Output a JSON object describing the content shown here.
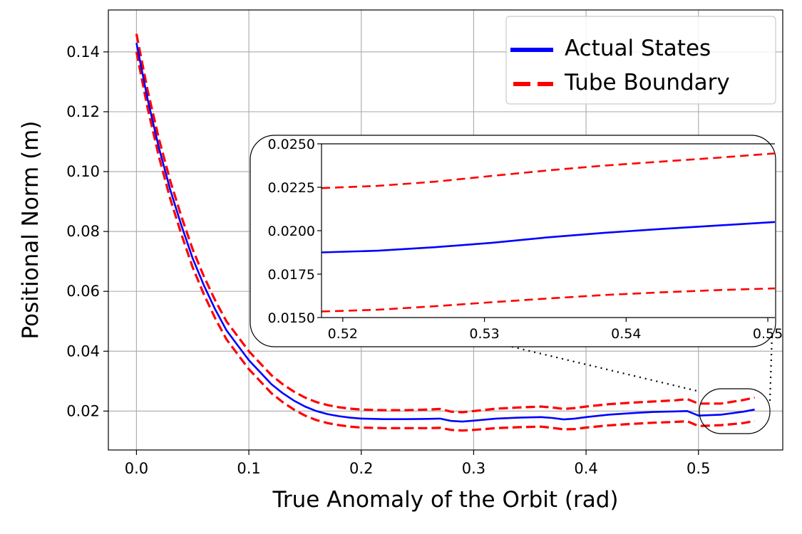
{
  "chart_data": {
    "type": "line",
    "xlabel": "True Anomaly of the Orbit (rad)",
    "ylabel": "Positional Norm (m)",
    "xlim": [
      -0.025,
      0.575
    ],
    "ylim": [
      0.007,
      0.154
    ],
    "grid": true,
    "legend_position": "top-right",
    "x_ticks": [
      0.0,
      0.1,
      0.2,
      0.3,
      0.4,
      0.5
    ],
    "x_tick_labels": [
      "0.0",
      "0.1",
      "0.2",
      "0.3",
      "0.4",
      "0.5"
    ],
    "y_ticks": [
      0.02,
      0.04,
      0.06,
      0.08,
      0.1,
      0.12,
      0.14
    ],
    "y_tick_labels": [
      "0.02",
      "0.04",
      "0.06",
      "0.08",
      "0.10",
      "0.12",
      "0.14"
    ],
    "x": [
      0.0,
      0.01,
      0.02,
      0.03,
      0.04,
      0.05,
      0.06,
      0.07,
      0.08,
      0.09,
      0.1,
      0.11,
      0.12,
      0.13,
      0.14,
      0.15,
      0.16,
      0.17,
      0.18,
      0.19,
      0.2,
      0.22,
      0.24,
      0.26,
      0.27,
      0.28,
      0.29,
      0.3,
      0.32,
      0.34,
      0.36,
      0.37,
      0.38,
      0.39,
      0.4,
      0.42,
      0.44,
      0.46,
      0.48,
      0.49,
      0.5,
      0.52,
      0.54,
      0.55
    ],
    "series": [
      {
        "name": "Actual States",
        "color": "#0000ff",
        "style": "solid",
        "values": [
          0.143,
          0.124,
          0.108,
          0.094,
          0.082,
          0.071,
          0.062,
          0.054,
          0.047,
          0.042,
          0.037,
          0.033,
          0.029,
          0.026,
          0.0235,
          0.0215,
          0.02,
          0.019,
          0.0183,
          0.0178,
          0.0175,
          0.0173,
          0.0173,
          0.0174,
          0.0175,
          0.0167,
          0.0165,
          0.0168,
          0.0175,
          0.0178,
          0.018,
          0.0177,
          0.0172,
          0.0175,
          0.018,
          0.0188,
          0.0193,
          0.0197,
          0.0199,
          0.02,
          0.0185,
          0.0188,
          0.0198,
          0.0205
        ]
      },
      {
        "name": "Tube Boundary",
        "color": "#ff0000",
        "style": "dashed",
        "values": [
          0.146,
          0.127,
          0.111,
          0.097,
          0.085,
          0.074,
          0.065,
          0.057,
          0.05,
          0.045,
          0.04,
          0.036,
          0.032,
          0.029,
          0.0265,
          0.0245,
          0.023,
          0.022,
          0.0213,
          0.0208,
          0.0205,
          0.0203,
          0.0203,
          0.0205,
          0.0207,
          0.0198,
          0.0196,
          0.02,
          0.0208,
          0.0212,
          0.0215,
          0.0212,
          0.0207,
          0.021,
          0.0215,
          0.0223,
          0.0228,
          0.0232,
          0.0236,
          0.024,
          0.0225,
          0.0225,
          0.0237,
          0.0245
        ]
      },
      {
        "name": "",
        "legend": false,
        "color": "#ff0000",
        "style": "dashed",
        "values": [
          0.14,
          0.121,
          0.105,
          0.091,
          0.079,
          0.068,
          0.059,
          0.051,
          0.044,
          0.039,
          0.034,
          0.03,
          0.026,
          0.023,
          0.0205,
          0.0185,
          0.017,
          0.016,
          0.0153,
          0.0148,
          0.0145,
          0.0143,
          0.0143,
          0.0143,
          0.0144,
          0.0137,
          0.0135,
          0.0137,
          0.0143,
          0.0146,
          0.0148,
          0.0144,
          0.0139,
          0.014,
          0.0145,
          0.0152,
          0.0157,
          0.0161,
          0.0164,
          0.0166,
          0.015,
          0.0153,
          0.016,
          0.0167
        ]
      }
    ],
    "legend": [
      {
        "label": "Actual States",
        "color": "#0000ff",
        "style": "solid"
      },
      {
        "label": "Tube Boundary",
        "color": "#ff0000",
        "style": "dashed"
      }
    ],
    "inset": {
      "xlim": [
        0.5185,
        0.5505
      ],
      "ylim": [
        0.015,
        0.025
      ],
      "x_ticks": [
        0.52,
        0.53,
        0.54,
        0.55
      ],
      "x_tick_labels": [
        "0.52",
        "0.53",
        "0.54",
        "0.55"
      ],
      "y_ticks": [
        0.015,
        0.0175,
        0.02,
        0.0225,
        0.025
      ],
      "y_tick_labels": [
        "0.0150",
        "0.0175",
        "0.0200",
        "0.0225",
        "0.0250"
      ],
      "x": [
        0.5185,
        0.5225,
        0.5265,
        0.5305,
        0.5345,
        0.5385,
        0.5425,
        0.5465,
        0.5505
      ],
      "series": [
        {
          "name": "Actual States",
          "color": "#0000ff",
          "style": "solid",
          "values": [
            0.01875,
            0.01885,
            0.01905,
            0.0193,
            0.01962,
            0.01988,
            0.0201,
            0.0203,
            0.0205
          ]
        },
        {
          "name": "Tube Boundary",
          "color": "#ff0000",
          "style": "dashed",
          "values": [
            0.02245,
            0.02258,
            0.02282,
            0.02315,
            0.02347,
            0.02375,
            0.02398,
            0.0242,
            0.02445
          ]
        },
        {
          "name": "",
          "legend": false,
          "color": "#ff0000",
          "style": "dashed",
          "values": [
            0.01535,
            0.01545,
            0.01565,
            0.01588,
            0.0161,
            0.0163,
            0.01645,
            0.01658,
            0.01668
          ]
        }
      ]
    }
  }
}
